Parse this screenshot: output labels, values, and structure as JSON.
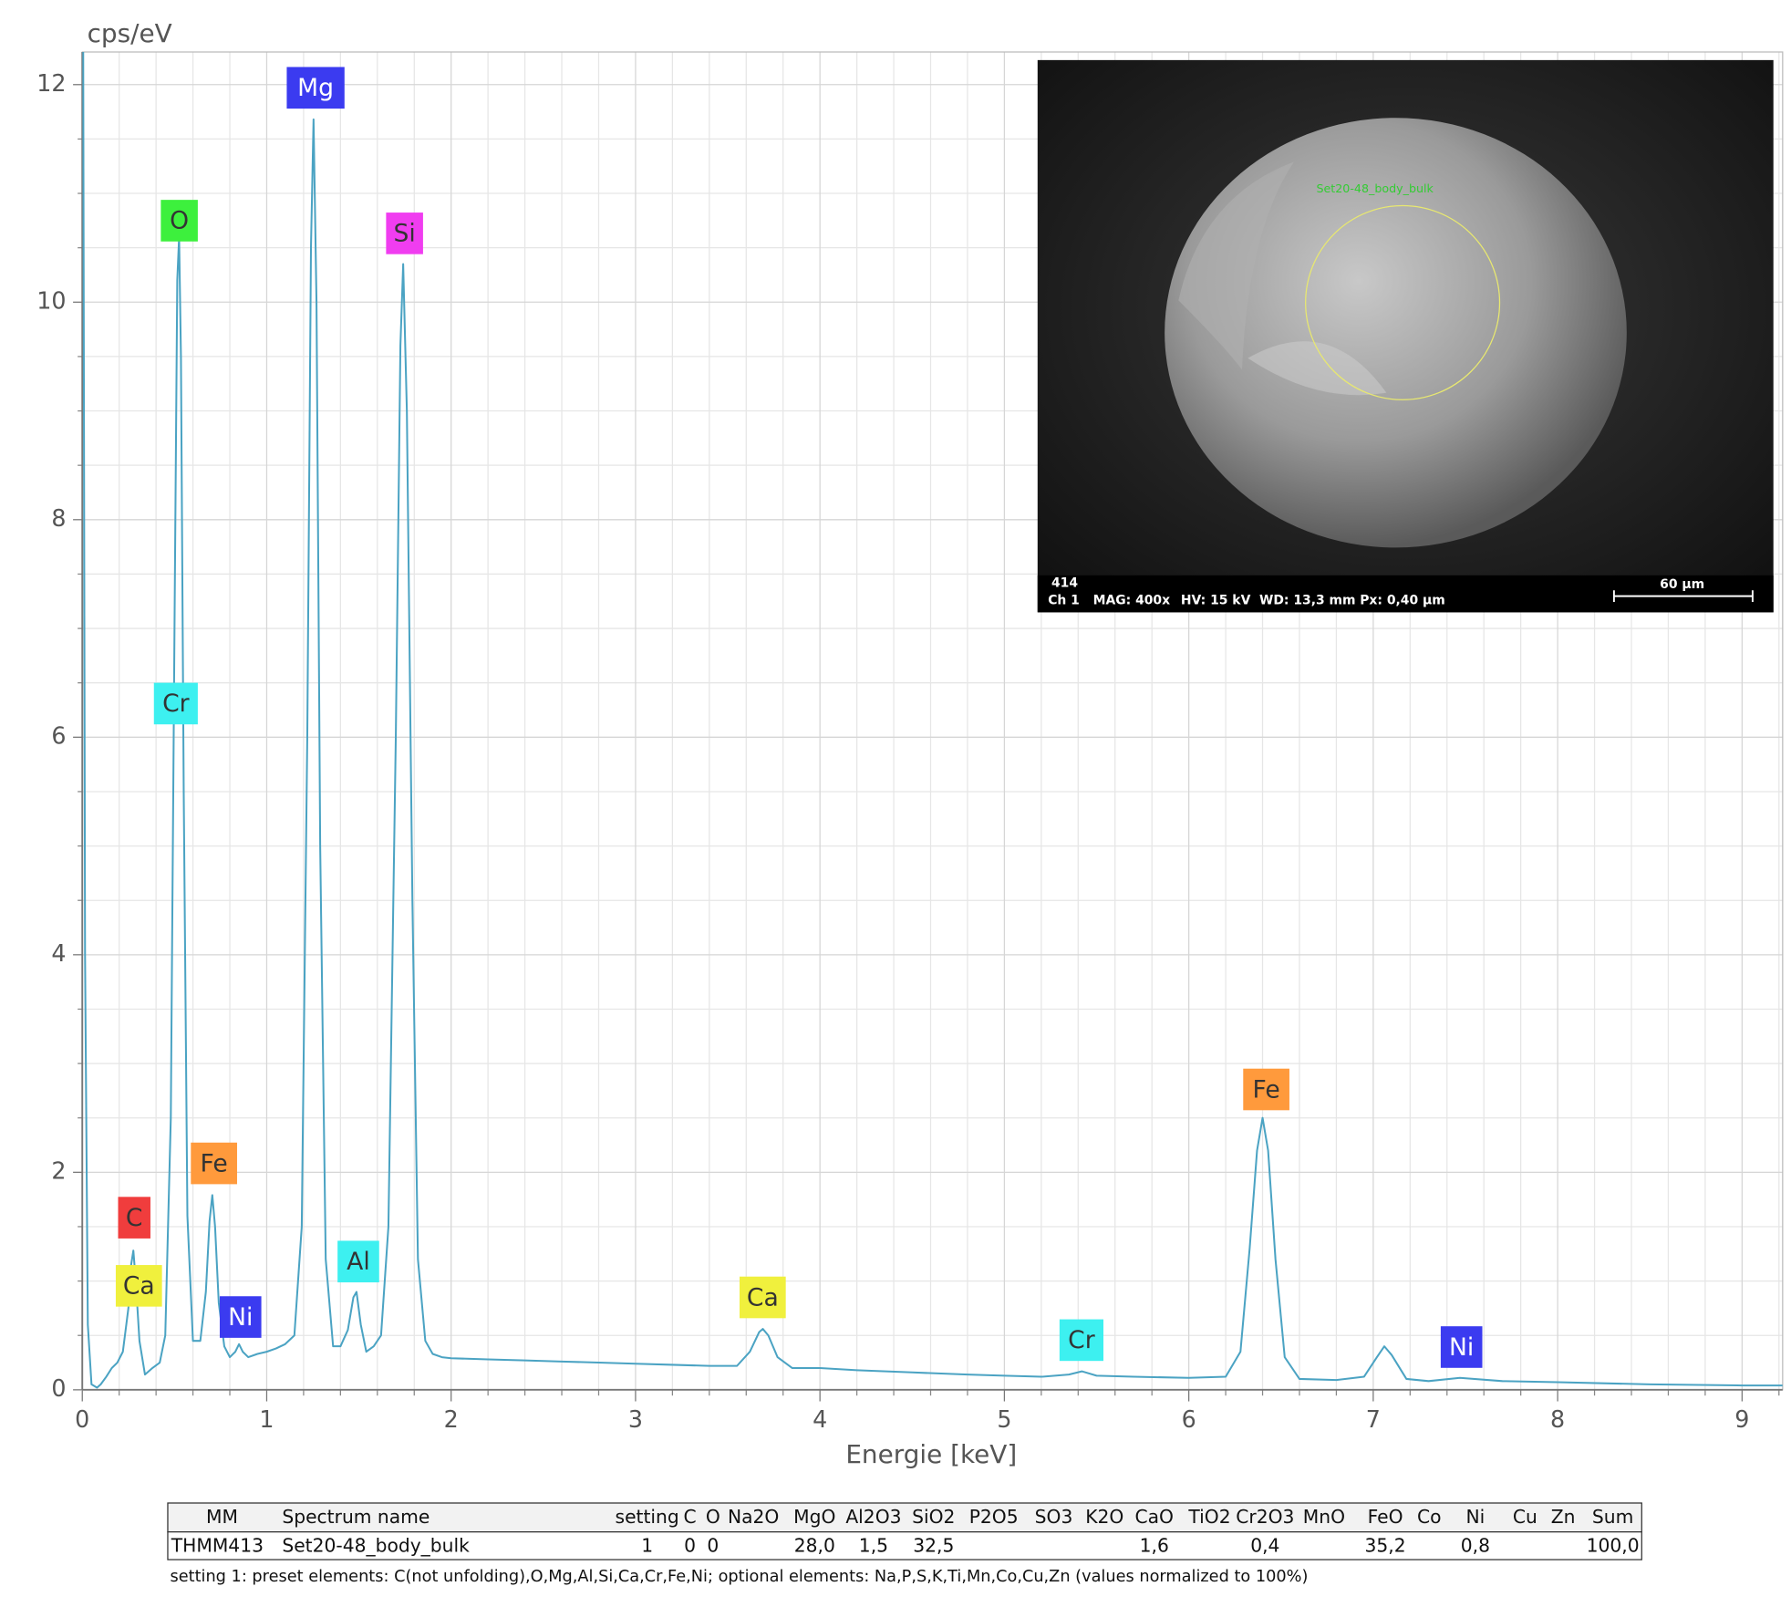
{
  "chart_data": {
    "type": "line",
    "y_label": "cps/eV",
    "x_label": "Energie [keV]",
    "x": [
      0,
      0.005,
      0.015,
      0.03,
      0.05,
      0.08,
      0.1,
      0.13,
      0.16,
      0.19,
      0.22,
      0.25,
      0.265,
      0.277,
      0.29,
      0.31,
      0.34,
      0.38,
      0.42,
      0.45,
      0.48,
      0.5,
      0.515,
      0.525,
      0.535,
      0.55,
      0.57,
      0.6,
      0.64,
      0.67,
      0.69,
      0.705,
      0.72,
      0.74,
      0.77,
      0.8,
      0.83,
      0.85,
      0.87,
      0.9,
      0.95,
      1.0,
      1.05,
      1.1,
      1.15,
      1.19,
      1.22,
      1.24,
      1.254,
      1.27,
      1.29,
      1.32,
      1.36,
      1.4,
      1.44,
      1.47,
      1.487,
      1.51,
      1.54,
      1.58,
      1.62,
      1.66,
      1.7,
      1.725,
      1.74,
      1.76,
      1.79,
      1.82,
      1.86,
      1.9,
      1.95,
      2.0,
      2.2,
      2.4,
      2.6,
      2.8,
      3.0,
      3.2,
      3.4,
      3.55,
      3.62,
      3.67,
      3.69,
      3.72,
      3.77,
      3.85,
      4.0,
      4.2,
      4.5,
      4.8,
      5.0,
      5.2,
      5.35,
      5.42,
      5.5,
      5.7,
      6.0,
      6.2,
      6.28,
      6.33,
      6.37,
      6.4,
      6.43,
      6.47,
      6.52,
      6.6,
      6.8,
      6.95,
      7.02,
      7.06,
      7.1,
      7.18,
      7.3,
      7.47,
      7.7,
      8.0,
      8.5,
      9.0,
      9.22
    ],
    "values": [
      12.3,
      12.3,
      4,
      0.6,
      0.05,
      0.02,
      0.05,
      0.12,
      0.2,
      0.25,
      0.35,
      0.75,
      1.15,
      1.28,
      1.0,
      0.45,
      0.14,
      0.2,
      0.25,
      0.5,
      2.5,
      7.0,
      10.2,
      10.6,
      9.5,
      5.5,
      1.6,
      0.45,
      0.45,
      0.9,
      1.55,
      1.79,
      1.5,
      0.8,
      0.4,
      0.3,
      0.35,
      0.42,
      0.35,
      0.3,
      0.33,
      0.35,
      0.38,
      0.42,
      0.5,
      1.5,
      6.0,
      10.5,
      11.68,
      10.0,
      5.0,
      1.2,
      0.4,
      0.4,
      0.55,
      0.85,
      0.9,
      0.6,
      0.35,
      0.4,
      0.5,
      1.5,
      6.0,
      9.6,
      10.35,
      9.0,
      4.5,
      1.2,
      0.45,
      0.33,
      0.3,
      0.29,
      0.28,
      0.27,
      0.26,
      0.25,
      0.24,
      0.23,
      0.22,
      0.22,
      0.35,
      0.53,
      0.56,
      0.5,
      0.3,
      0.2,
      0.2,
      0.18,
      0.16,
      0.14,
      0.13,
      0.12,
      0.14,
      0.17,
      0.13,
      0.12,
      0.11,
      0.12,
      0.35,
      1.3,
      2.2,
      2.5,
      2.2,
      1.2,
      0.3,
      0.1,
      0.09,
      0.12,
      0.3,
      0.4,
      0.32,
      0.1,
      0.08,
      0.11,
      0.08,
      0.07,
      0.05,
      0.04,
      0.04
    ],
    "color": "#4ba3c3",
    "xlim": [
      0,
      9.22
    ],
    "ylim": [
      0,
      12.3
    ],
    "xticks": [
      0,
      1,
      2,
      3,
      4,
      5,
      6,
      7,
      8,
      9
    ],
    "yticks": [
      0,
      2,
      4,
      6,
      8,
      10,
      12
    ],
    "grid": true,
    "minor_grid": true,
    "annotations": [
      {
        "text": "Mg",
        "color": "#3b3bf0",
        "text_color": "#ffffff"
      },
      {
        "text": "O",
        "color": "#3df03d",
        "text_color": "#333333"
      },
      {
        "text": "Si",
        "color": "#f03df0",
        "text_color": "#333333"
      },
      {
        "text": "Cr",
        "color": "#3df0f0",
        "text_color": "#333333"
      },
      {
        "text": "Fe",
        "color": "#ff9a3c",
        "text_color": "#333333"
      },
      {
        "text": "C",
        "color": "#f03d3d",
        "text_color": "#333333"
      },
      {
        "text": "Ca",
        "color": "#f0f03d",
        "text_color": "#333333"
      },
      {
        "text": "Ni",
        "color": "#3b3bf0",
        "text_color": "#ffffff"
      },
      {
        "text": "Al",
        "color": "#3df0f0",
        "text_color": "#333333"
      },
      {
        "text": "Ca",
        "color": "#f0f03d",
        "text_color": "#333333"
      },
      {
        "text": "Cr",
        "color": "#3df0f0",
        "text_color": "#333333"
      },
      {
        "text": "Fe",
        "color": "#ff9a3c",
        "text_color": "#333333"
      },
      {
        "text": "Ni",
        "color": "#3b3bf0",
        "text_color": "#ffffff"
      }
    ]
  },
  "inset": {
    "roi_label": "Set20-48_body_bulk",
    "id": "414",
    "channel": "Ch 1",
    "mag": "MAG: 400x",
    "hv": "HV: 15 kV",
    "wd": "WD: 13,3 mm",
    "px": "Px: 0,40 µm",
    "scale": "60 µm"
  },
  "table": {
    "header": [
      "MM",
      "Spectrum name",
      "setting",
      "C",
      "O",
      "Na2O",
      "MgO",
      "Al2O3",
      "SiO2",
      "P2O5",
      "SO3",
      "K2O",
      "CaO",
      "TiO2",
      "Cr2O3",
      "MnO",
      "FeO",
      "Co",
      "Ni",
      "Cu",
      "Zn",
      "Sum"
    ],
    "rows": [
      [
        "THMM413",
        "Set20-48_body_bulk",
        "1",
        "0",
        "0",
        null,
        "28,0",
        "1,5",
        "32,5",
        null,
        null,
        null,
        "1,6",
        null,
        "0,4",
        null,
        "35,2",
        null,
        "0,8",
        null,
        null,
        "100,0"
      ]
    ],
    "note": "setting 1: preset elements: C(not unfolding),O,Mg,Al,Si,Ca,Cr,Fe,Ni; optional elements: Na,P,S,K,Ti,Mn,Co,Cu,Zn (values normalized to 100%)"
  }
}
